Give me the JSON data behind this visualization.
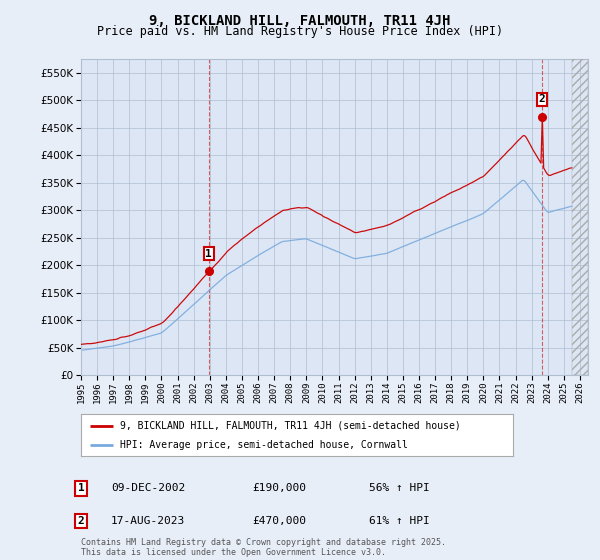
{
  "title": "9, BICKLAND HILL, FALMOUTH, TR11 4JH",
  "subtitle": "Price paid vs. HM Land Registry's House Price Index (HPI)",
  "legend_line1": "9, BICKLAND HILL, FALMOUTH, TR11 4JH (semi-detached house)",
  "legend_line2": "HPI: Average price, semi-detached house, Cornwall",
  "sale1_label": "1",
  "sale1_date": "09-DEC-2002",
  "sale1_price": "£190,000",
  "sale1_hpi": "56% ↑ HPI",
  "sale2_label": "2",
  "sale2_date": "17-AUG-2023",
  "sale2_price": "£470,000",
  "sale2_hpi": "61% ↑ HPI",
  "footnote": "Contains HM Land Registry data © Crown copyright and database right 2025.\nThis data is licensed under the Open Government Licence v3.0.",
  "ylim": [
    0,
    575000
  ],
  "yticks": [
    0,
    50000,
    100000,
    150000,
    200000,
    250000,
    300000,
    350000,
    400000,
    450000,
    500000,
    550000
  ],
  "xlim_start": 1995.0,
  "xlim_end": 2026.5,
  "sale1_x": 2002.94,
  "sale1_y": 190000,
  "sale2_x": 2023.63,
  "sale2_y": 470000,
  "vline1_x": 2002.94,
  "vline2_x": 2023.63,
  "bg_color": "#e8eef8",
  "plot_bg": "#dce6f5",
  "red_color": "#cc0000",
  "blue_color": "#7aaadd",
  "grid_color": "#b0bfd0"
}
